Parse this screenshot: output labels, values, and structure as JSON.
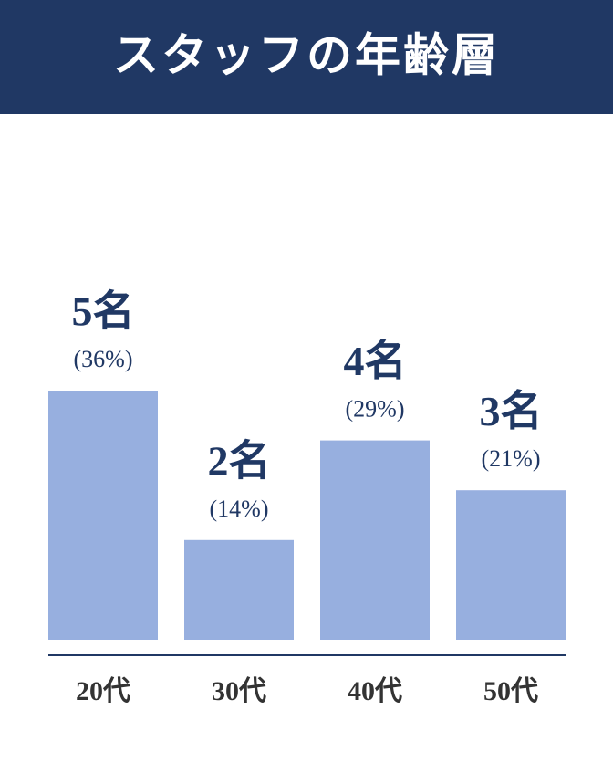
{
  "chart_data": {
    "type": "bar",
    "title": "スタッフの年齢層",
    "categories": [
      "20代",
      "30代",
      "40代",
      "50代"
    ],
    "values": [
      5,
      2,
      4,
      3
    ],
    "value_labels": [
      "5名",
      "2名",
      "4名",
      "3名"
    ],
    "shares": [
      36,
      14,
      29,
      21
    ],
    "share_labels": [
      "(36%)",
      "(14%)",
      "(29%)",
      "(21%)"
    ],
    "color": "#97afdf"
  }
}
